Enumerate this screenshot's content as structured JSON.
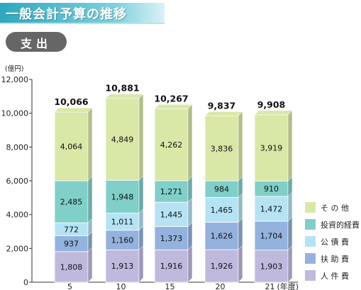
{
  "header": {
    "title": "一般会計予算の推移",
    "section": "支出"
  },
  "colors": {
    "その他": "#d9e8a6",
    "投資的経費": "#80cfc9",
    "公債費": "#b5e3f3",
    "扶助費": "#94b2de",
    "人件費": "#c0b9de"
  },
  "chart_data": {
    "type": "bar",
    "stacked": true,
    "unit_label": "(億円)",
    "x_suffix": "(年度)",
    "categories": [
      "5",
      "10",
      "15",
      "20",
      "21"
    ],
    "ylim": [
      0,
      12000
    ],
    "yticks": [
      0,
      2000,
      4000,
      6000,
      8000,
      10000,
      12000
    ],
    "ytick_labels": [
      "0",
      "2,000",
      "4,000",
      "6,000",
      "8,000",
      "10,000",
      "12,000"
    ],
    "totals": [
      "10,066",
      "10,881",
      "10,267",
      "9,837",
      "9,908"
    ],
    "series": [
      {
        "name": "人件費",
        "legend_label": "人 件 費",
        "values": [
          1808,
          1913,
          1916,
          1926,
          1903
        ],
        "labels": [
          "1,808",
          "1,913",
          "1,916",
          "1,926",
          "1,903"
        ]
      },
      {
        "name": "扶助費",
        "legend_label": "扶 助 費",
        "values": [
          937,
          1160,
          1373,
          1626,
          1704
        ],
        "labels": [
          "937",
          "1,160",
          "1,373",
          "1,626",
          "1,704"
        ]
      },
      {
        "name": "公債費",
        "legend_label": "公 債 費",
        "values": [
          772,
          1011,
          1445,
          1465,
          1472
        ],
        "labels": [
          "772",
          "1,011",
          "1,445",
          "1,465",
          "1,472"
        ]
      },
      {
        "name": "投資的経費",
        "legend_label": "投資的経費",
        "values": [
          2485,
          1948,
          1271,
          984,
          910
        ],
        "labels": [
          "2,485",
          "1,948",
          "1,271",
          "984",
          "910"
        ]
      },
      {
        "name": "その他",
        "legend_label": "そ の 他",
        "values": [
          4064,
          4849,
          4262,
          3836,
          3919
        ],
        "labels": [
          "4,064",
          "4,849",
          "4,262",
          "3,836",
          "3,919"
        ]
      }
    ],
    "legend_position": "right",
    "grid": false
  }
}
